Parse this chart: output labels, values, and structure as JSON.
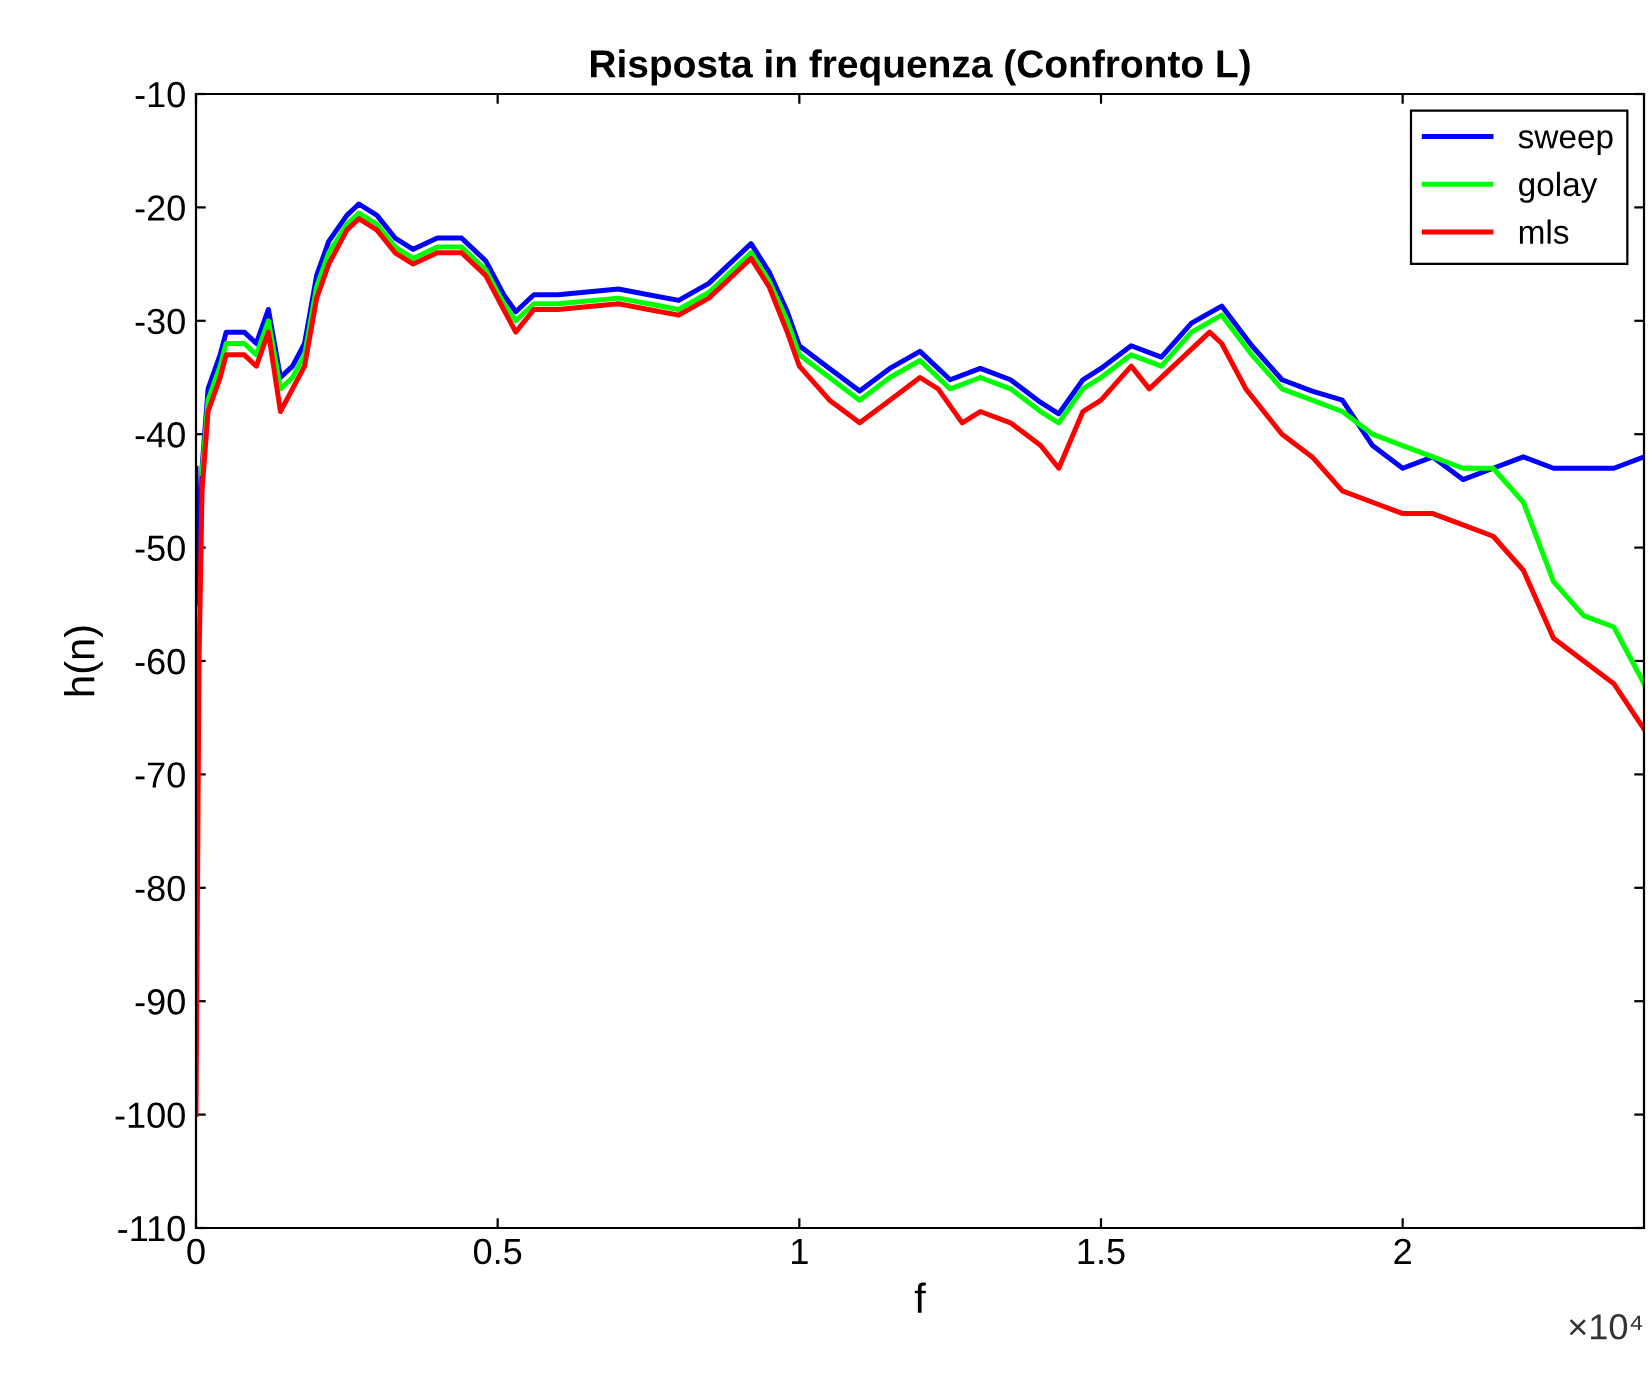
{
  "chart_data": {
    "type": "line",
    "title": "Risposta in frequenza (Confronto L)",
    "xlabel": "f",
    "ylabel": "h(n)",
    "annotations": [
      "×10⁴"
    ],
    "xlim": [
      0,
      2.4
    ],
    "ylim": [
      -110,
      -10
    ],
    "xticks": [
      0,
      0.5,
      1,
      1.5,
      2
    ],
    "yticks": [
      -110,
      -100,
      -90,
      -80,
      -70,
      -60,
      -50,
      -40,
      -30,
      -20,
      -10
    ],
    "grid": false,
    "legend": "top right",
    "series": [
      {
        "name": "sweep",
        "color": "#0000ff",
        "x": [
          0,
          0.005,
          0.01,
          0.02,
          0.04,
          0.05,
          0.08,
          0.1,
          0.12,
          0.14,
          0.16,
          0.18,
          0.2,
          0.22,
          0.25,
          0.27,
          0.3,
          0.33,
          0.36,
          0.4,
          0.44,
          0.48,
          0.51,
          0.53,
          0.56,
          0.6,
          0.7,
          0.75,
          0.8,
          0.85,
          0.9,
          0.92,
          0.95,
          0.98,
          1.0,
          1.05,
          1.1,
          1.15,
          1.2,
          1.25,
          1.3,
          1.35,
          1.4,
          1.43,
          1.47,
          1.5,
          1.55,
          1.6,
          1.65,
          1.7,
          1.75,
          1.8,
          1.85,
          1.9,
          1.95,
          2.0,
          2.05,
          2.1,
          2.15,
          2.2,
          2.25,
          2.3,
          2.35,
          2.4
        ],
        "values": [
          -43,
          -55,
          -43,
          -36,
          -33,
          -31,
          -31,
          -32,
          -29,
          -35,
          -34,
          -32,
          -26,
          -23,
          -20.7,
          -19.7,
          -20.7,
          -22.7,
          -23.7,
          -22.7,
          -22.7,
          -24.7,
          -27.7,
          -29.2,
          -27.7,
          -27.7,
          -27.2,
          -27.7,
          -28.2,
          -26.7,
          -24.2,
          -23.2,
          -25.7,
          -29.2,
          -32.2,
          -34.2,
          -36.2,
          -34.2,
          -32.7,
          -35.2,
          -34.2,
          -35.2,
          -37.2,
          -38.2,
          -35.2,
          -34.2,
          -32.2,
          -33.2,
          -30.2,
          -28.7,
          -32.2,
          -35.2,
          -36.2,
          -37,
          -41,
          -43,
          -42,
          -44,
          -43,
          -42,
          -43,
          -43,
          -43,
          -42
        ]
      },
      {
        "name": "golay",
        "color": "#00ff00",
        "x": [
          0.01,
          0.02,
          0.04,
          0.05,
          0.08,
          0.1,
          0.12,
          0.14,
          0.16,
          0.18,
          0.2,
          0.22,
          0.25,
          0.27,
          0.3,
          0.33,
          0.36,
          0.4,
          0.44,
          0.48,
          0.51,
          0.53,
          0.56,
          0.6,
          0.7,
          0.75,
          0.8,
          0.85,
          0.9,
          0.92,
          0.95,
          0.98,
          1.0,
          1.05,
          1.1,
          1.15,
          1.2,
          1.25,
          1.3,
          1.35,
          1.4,
          1.43,
          1.47,
          1.5,
          1.55,
          1.6,
          1.65,
          1.7,
          1.75,
          1.8,
          1.85,
          1.9,
          1.95,
          2.0,
          2.05,
          2.1,
          2.15,
          2.2,
          2.25,
          2.3,
          2.35,
          2.4
        ],
        "values": [
          -43.5,
          -37,
          -34,
          -32,
          -32,
          -33,
          -30,
          -36,
          -35,
          -33,
          -27,
          -24,
          -21.5,
          -20.5,
          -21.5,
          -23.5,
          -24.5,
          -23.5,
          -23.5,
          -25.5,
          -28.5,
          -30,
          -28.5,
          -28.5,
          -28,
          -28.5,
          -29,
          -27.5,
          -25,
          -24,
          -26.5,
          -30,
          -33,
          -35,
          -37,
          -35,
          -33.5,
          -36,
          -35,
          -36,
          -38,
          -39,
          -36,
          -35,
          -33,
          -34,
          -31,
          -29.5,
          -33,
          -36,
          -37,
          -38,
          -40,
          -41,
          -42,
          -43,
          -43,
          -46,
          -53,
          -56,
          -57,
          -62
        ]
      },
      {
        "name": "mls",
        "color": "#ff0000",
        "x": [
          0,
          0.005,
          0.01,
          0.02,
          0.04,
          0.05,
          0.08,
          0.1,
          0.12,
          0.14,
          0.16,
          0.18,
          0.2,
          0.22,
          0.25,
          0.27,
          0.3,
          0.33,
          0.36,
          0.4,
          0.44,
          0.48,
          0.51,
          0.53,
          0.56,
          0.6,
          0.7,
          0.75,
          0.8,
          0.85,
          0.9,
          0.92,
          0.95,
          0.98,
          1.0,
          1.05,
          1.1,
          1.15,
          1.2,
          1.23,
          1.27,
          1.3,
          1.35,
          1.4,
          1.43,
          1.47,
          1.5,
          1.55,
          1.58,
          1.62,
          1.68,
          1.7,
          1.74,
          1.8,
          1.85,
          1.9,
          1.95,
          2.0,
          2.05,
          2.1,
          2.15,
          2.2,
          2.25,
          2.3,
          2.35,
          2.4
        ],
        "values": [
          -100,
          -60,
          -45,
          -38,
          -35,
          -33,
          -33,
          -34,
          -31,
          -38,
          -36,
          -34,
          -28,
          -25,
          -22,
          -21,
          -22,
          -24,
          -25,
          -24,
          -24,
          -26,
          -29,
          -31,
          -29,
          -29,
          -28.5,
          -29,
          -29.5,
          -28,
          -25.5,
          -24.5,
          -27,
          -31,
          -34,
          -37,
          -39,
          -37,
          -35,
          -36,
          -39,
          -38,
          -39,
          -41,
          -43,
          -38,
          -37,
          -34,
          -36,
          -34,
          -31,
          -32,
          -36,
          -40,
          -42,
          -45,
          -46,
          -47,
          -47,
          -48,
          -49,
          -52,
          -58,
          -60,
          -62,
          -66
        ]
      }
    ]
  }
}
